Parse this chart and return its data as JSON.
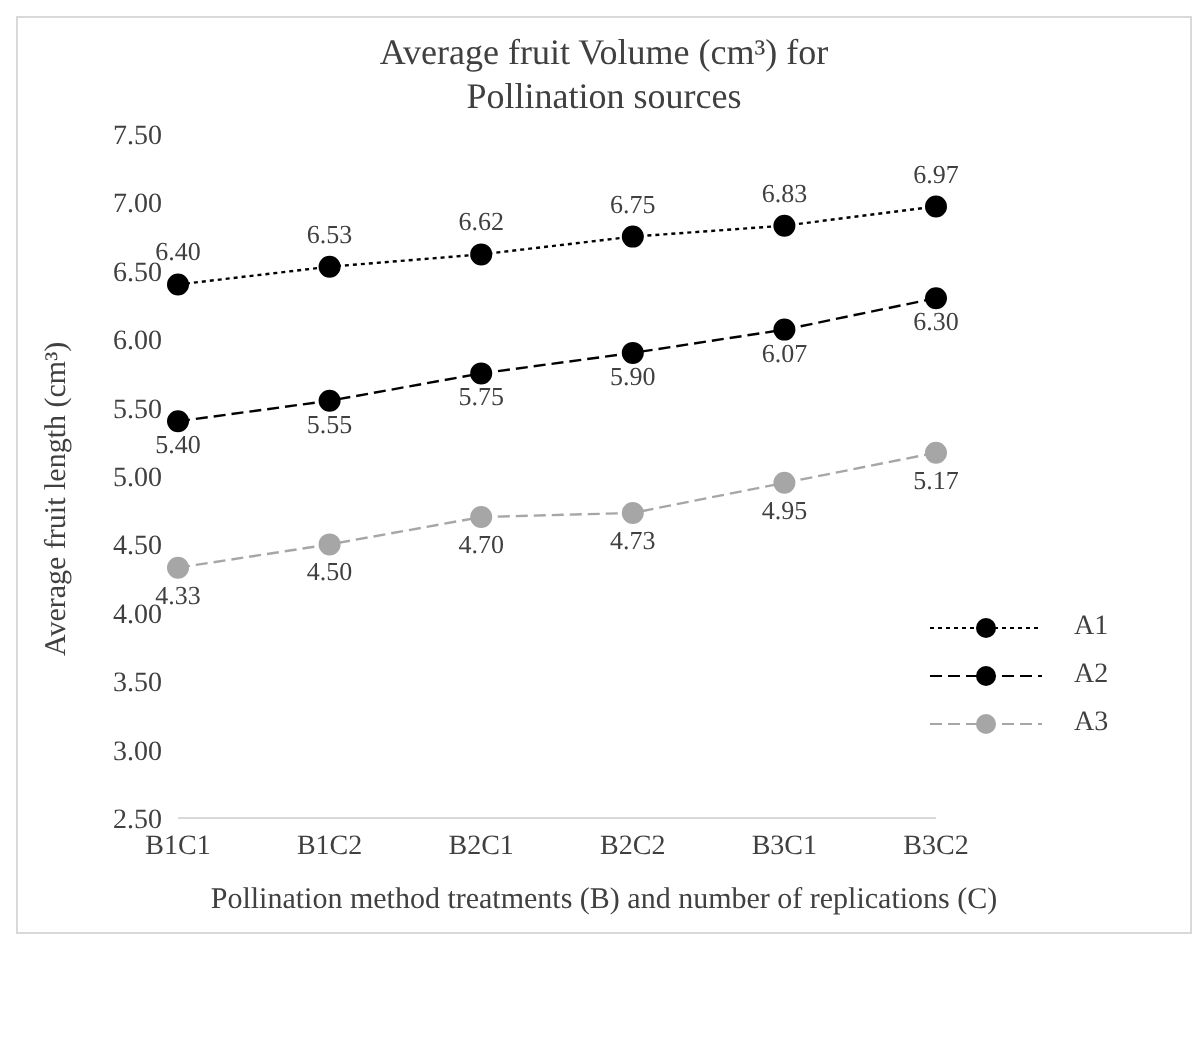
{
  "chart_data": {
    "type": "line",
    "title": "Average fruit Volume (cm³) for Pollination sources",
    "xlabel": "Pollination method treatments (B) and number of replications (C)",
    "ylabel": "Average fruit length (cm³)",
    "categories": [
      "B1C1",
      "B1C2",
      "B2C1",
      "B2C2",
      "B3C1",
      "B3C2"
    ],
    "series": [
      {
        "name": "A1",
        "color": "#000000",
        "line_style": "dotted",
        "values": [
          6.4,
          6.53,
          6.62,
          6.75,
          6.83,
          6.97
        ],
        "value_labels": [
          "6.40",
          "6.53",
          "6.62",
          "6.75",
          "6.83",
          "6.97"
        ]
      },
      {
        "name": "A2",
        "color": "#000000",
        "line_style": "dashed",
        "values": [
          5.4,
          5.55,
          5.75,
          5.9,
          6.07,
          6.3
        ],
        "value_labels": [
          "5.40",
          "5.55",
          "5.75",
          "5.90",
          "6.07",
          "6.30"
        ]
      },
      {
        "name": "A3",
        "color": "#a6a6a6",
        "line_style": "dashed",
        "values": [
          4.33,
          4.5,
          4.7,
          4.73,
          4.95,
          5.17
        ],
        "value_labels": [
          "4.33",
          "4.50",
          "4.70",
          "4.73",
          "4.95",
          "5.17"
        ]
      }
    ],
    "ylim": [
      2.5,
      7.5
    ],
    "yticks": [
      {
        "value": 2.5,
        "label": "2.50"
      },
      {
        "value": 3,
        "label": "3.00"
      },
      {
        "value": 3.5,
        "label": "3.50"
      },
      {
        "value": 4,
        "label": "4.00"
      },
      {
        "value": 4.5,
        "label": "4.50"
      },
      {
        "value": 5,
        "label": "5.00"
      },
      {
        "value": 5.5,
        "label": "5.50"
      },
      {
        "value": 6,
        "label": "6.00"
      },
      {
        "value": 6.5,
        "label": "6.50"
      },
      {
        "value": 7,
        "label": "7.00"
      },
      {
        "value": 7.5,
        "label": "7.50"
      }
    ],
    "grid": false,
    "legend": "bottom right",
    "marker": "circle"
  }
}
